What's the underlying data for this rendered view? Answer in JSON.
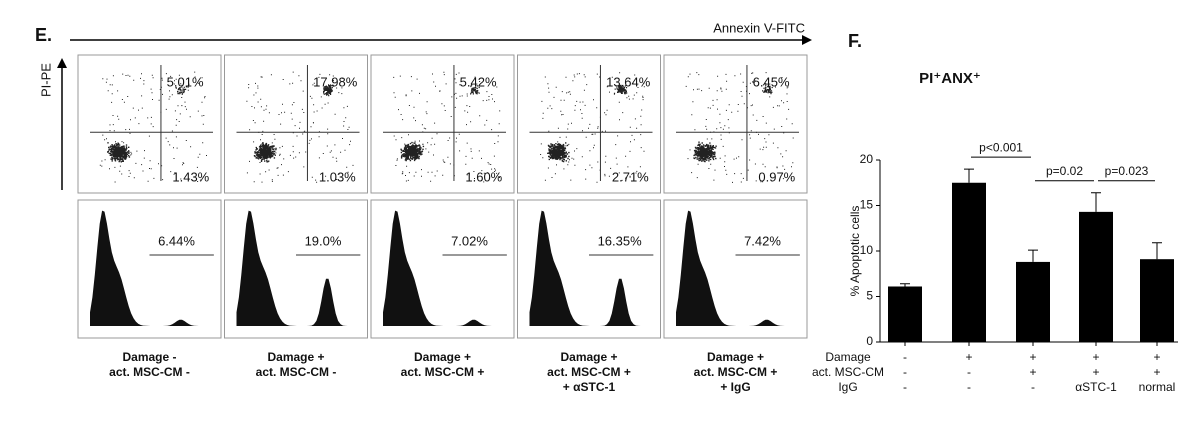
{
  "panel_e": {
    "label": "E.",
    "x_axis_label": "Annexin V-FITC",
    "y_axis_label": "PI-PE",
    "panels": [
      {
        "upper_right": "5.01%",
        "lower_right": "1.43%",
        "histogram": "6.44%",
        "caption": [
          "Damage -",
          "act. MSC-CM -"
        ]
      },
      {
        "upper_right": "17.98%",
        "lower_right": "1.03%",
        "histogram": "19.0%",
        "caption": [
          "Damage +",
          "act. MSC-CM -"
        ]
      },
      {
        "upper_right": "5.42%",
        "lower_right": "1.60%",
        "histogram": "7.02%",
        "caption": [
          "Damage +",
          "act. MSC-CM +"
        ]
      },
      {
        "upper_right": "13.64%",
        "lower_right": "2.71%",
        "histogram": "16.35%",
        "caption": [
          "Damage +",
          "act. MSC-CM +",
          "+ αSTC-1"
        ]
      },
      {
        "upper_right": "6.45%",
        "lower_right": "0.97%",
        "histogram": "7.42%",
        "caption": [
          "Damage +",
          "act. MSC-CM +",
          "+ IgG"
        ]
      }
    ]
  },
  "chart_data": {
    "type": "bar",
    "label": "F.",
    "title": "PI⁺ANX⁺",
    "y_axis_label": "% Apoptotic cells",
    "values": [
      6.1,
      17.5,
      8.8,
      14.3,
      9.1
    ],
    "errors": [
      0.3,
      1.5,
      1.3,
      2.1,
      1.8
    ],
    "color": "#000000",
    "ylim": [
      0,
      20
    ],
    "yticks": [
      0,
      5,
      10,
      15,
      20
    ],
    "conditions": [
      {
        "name": "Damage",
        "values": [
          "-",
          "+",
          "+",
          "+",
          "+"
        ]
      },
      {
        "name": "act. MSC-CM",
        "values": [
          "-",
          "-",
          "+",
          "+",
          "+"
        ]
      },
      {
        "name": "IgG",
        "values": [
          "-",
          "-",
          "-",
          "αSTC-1",
          "normal"
        ]
      }
    ],
    "annotations": [
      {
        "text": "p<0.001",
        "from": 1,
        "to": 2
      },
      {
        "text": "p=0.02",
        "from": 2,
        "to": 3
      },
      {
        "text": "p=0.023",
        "from": 3,
        "to": 4
      }
    ]
  }
}
